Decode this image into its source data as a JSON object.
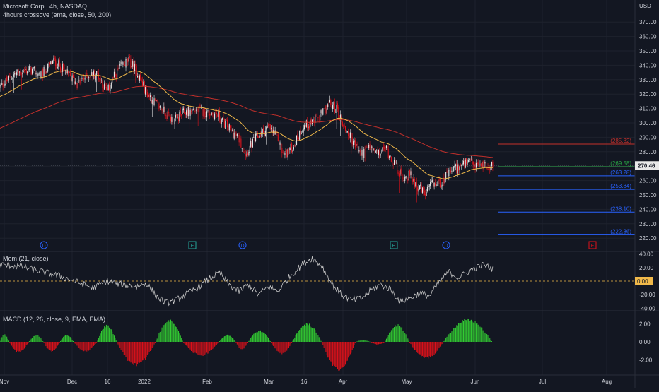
{
  "symbol": {
    "title": "Microsoft Corp., 4h, NASDAQ",
    "study": "4hours crossove (ema, close, 50, 200)"
  },
  "currency": "USD",
  "colors": {
    "background": "#131722",
    "grid": "#1e222d",
    "candle_up": "#e6e6e6",
    "candle_down": "#e0111a",
    "ema50": "#f0b94a",
    "ema200": "#c4302b",
    "price_label_bg": "#e8e8e8",
    "level_green": "#29a745",
    "level_blue": "#2962ff",
    "level_red": "#c4302b",
    "mom_line": "#c8c8c8",
    "mom_zero": "#f0b94a",
    "macd_pos": "#32cd32",
    "macd_neg": "#e0111a",
    "event_dividend": "#2962ff",
    "event_earnings": "#26a69a",
    "event_earnings_future": "#e0111a"
  },
  "price_axis": {
    "ticks": [
      "370.00",
      "360.00",
      "350.00",
      "340.00",
      "330.00",
      "320.00",
      "310.00",
      "300.00",
      "290.00",
      "280.00",
      "270.00",
      "260.00",
      "250.00",
      "240.00",
      "230.00",
      "220.00"
    ],
    "tick_values": [
      370,
      360,
      350,
      340,
      330,
      320,
      310,
      300,
      290,
      280,
      270,
      260,
      250,
      240,
      230,
      220
    ],
    "last_price": "270.46",
    "last_price_value": 270.46
  },
  "levels": [
    {
      "label": "(285.32)",
      "value": 285.32,
      "color": "#c4302b"
    },
    {
      "label": "(269.58)",
      "value": 269.58,
      "color": "#29a745"
    },
    {
      "label": "(263.28)",
      "value": 263.28,
      "color": "#2962ff"
    },
    {
      "label": "(253.84)",
      "value": 253.84,
      "color": "#2962ff"
    },
    {
      "label": "(238.10)",
      "value": 238.1,
      "color": "#2962ff"
    },
    {
      "label": "(222.36)",
      "value": 222.36,
      "color": "#2962ff"
    }
  ],
  "events": [
    {
      "letter": "D",
      "type": "dividend"
    },
    {
      "letter": "E",
      "type": "earnings"
    },
    {
      "letter": "D",
      "type": "dividend"
    },
    {
      "letter": "E",
      "type": "earnings"
    },
    {
      "letter": "D",
      "type": "dividend"
    },
    {
      "letter": "E",
      "type": "earnings_future"
    }
  ],
  "time_axis": [
    "Nov",
    "Dec",
    "16",
    "2022",
    "Feb",
    "Mar",
    "16",
    "Apr",
    "May",
    "Jun",
    "Jul",
    "Aug"
  ],
  "mom": {
    "label": "Mom (21, close)",
    "ticks": [
      "40.00",
      "20.00",
      "-20.00",
      "-40.00"
    ],
    "tick_values": [
      40,
      20,
      -20,
      -40
    ],
    "last_value": "0.00",
    "anchors": [
      [
        0,
        24
      ],
      [
        20,
        22
      ],
      [
        40,
        15
      ],
      [
        60,
        8
      ],
      [
        80,
        -2
      ],
      [
        95,
        -10
      ],
      [
        110,
        0
      ],
      [
        125,
        -5
      ],
      [
        140,
        -8
      ],
      [
        150,
        -3
      ],
      [
        160,
        -22
      ],
      [
        170,
        -32
      ],
      [
        180,
        -28
      ],
      [
        190,
        -20
      ],
      [
        200,
        -12
      ],
      [
        215,
        4
      ],
      [
        225,
        12
      ],
      [
        235,
        -6
      ],
      [
        245,
        -15
      ],
      [
        255,
        -5
      ],
      [
        265,
        -20
      ],
      [
        275,
        -8
      ],
      [
        285,
        -15
      ],
      [
        295,
        4
      ],
      [
        310,
        25
      ],
      [
        320,
        34
      ],
      [
        330,
        22
      ],
      [
        340,
        -4
      ],
      [
        350,
        -20
      ],
      [
        360,
        -28
      ],
      [
        370,
        -26
      ],
      [
        380,
        -14
      ],
      [
        390,
        -5
      ],
      [
        400,
        -12
      ],
      [
        410,
        -30
      ],
      [
        420,
        -25
      ],
      [
        430,
        -18
      ],
      [
        440,
        -22
      ],
      [
        450,
        -2
      ],
      [
        460,
        14
      ],
      [
        470,
        5
      ],
      [
        482,
        16
      ],
      [
        495,
        24
      ],
      [
        505,
        18
      ]
    ]
  },
  "macd": {
    "label": "MACD (12, 26, close, 9, EMA, EMA)",
    "ticks": [
      "2.00",
      "0.00",
      "-2.00"
    ],
    "tick_values": [
      2,
      0,
      -2
    ],
    "segments": [
      {
        "from": 0,
        "to": 10,
        "peak": 0.85
      },
      {
        "from": 10,
        "to": 30,
        "peak": -1.2
      },
      {
        "from": 30,
        "to": 45,
        "peak": 0.8
      },
      {
        "from": 45,
        "to": 62,
        "peak": -1.1
      },
      {
        "from": 62,
        "to": 76,
        "peak": 0.8
      },
      {
        "from": 76,
        "to": 100,
        "peak": -1.1
      },
      {
        "from": 100,
        "to": 120,
        "peak": 1.9
      },
      {
        "from": 120,
        "to": 160,
        "peak": -2.7
      },
      {
        "from": 160,
        "to": 188,
        "peak": 2.5
      },
      {
        "from": 188,
        "to": 225,
        "peak": -1.6
      },
      {
        "from": 225,
        "to": 242,
        "peak": 0.8
      },
      {
        "from": 242,
        "to": 255,
        "peak": -0.9
      },
      {
        "from": 255,
        "to": 278,
        "peak": 1.3
      },
      {
        "from": 278,
        "to": 300,
        "peak": -1.4
      },
      {
        "from": 300,
        "to": 330,
        "peak": 2.1
      },
      {
        "from": 330,
        "to": 365,
        "peak": -3.2
      },
      {
        "from": 365,
        "to": 380,
        "peak": 0.2
      },
      {
        "from": 380,
        "to": 395,
        "peak": -0.3
      },
      {
        "from": 395,
        "to": 420,
        "peak": 2.0
      },
      {
        "from": 420,
        "to": 455,
        "peak": -1.9
      },
      {
        "from": 455,
        "to": 505,
        "peak": 2.6
      }
    ]
  },
  "price_path": {
    "total_bars": 506,
    "anchors": [
      [
        0,
        325
      ],
      [
        15,
        334
      ],
      [
        30,
        337
      ],
      [
        42,
        333
      ],
      [
        55,
        343
      ],
      [
        62,
        339
      ],
      [
        70,
        333
      ],
      [
        80,
        327
      ],
      [
        90,
        333
      ],
      [
        100,
        334
      ],
      [
        110,
        321
      ],
      [
        115,
        330
      ],
      [
        125,
        340
      ],
      [
        132,
        343
      ],
      [
        140,
        336
      ],
      [
        150,
        321
      ],
      [
        160,
        313
      ],
      [
        170,
        307
      ],
      [
        178,
        301
      ],
      [
        188,
        307
      ],
      [
        200,
        309
      ],
      [
        212,
        307
      ],
      [
        222,
        306
      ],
      [
        235,
        296
      ],
      [
        245,
        289
      ],
      [
        252,
        279
      ],
      [
        262,
        289
      ],
      [
        275,
        297
      ],
      [
        285,
        289
      ],
      [
        290,
        278
      ],
      [
        300,
        283
      ],
      [
        310,
        297
      ],
      [
        320,
        301
      ],
      [
        330,
        306
      ],
      [
        337,
        313
      ],
      [
        345,
        310
      ],
      [
        352,
        298
      ],
      [
        362,
        287
      ],
      [
        370,
        278
      ],
      [
        378,
        283
      ],
      [
        388,
        278
      ],
      [
        395,
        283
      ],
      [
        405,
        271
      ],
      [
        412,
        262
      ],
      [
        420,
        264
      ],
      [
        428,
        256
      ],
      [
        436,
        250
      ],
      [
        442,
        257
      ],
      [
        450,
        258
      ],
      [
        458,
        263
      ],
      [
        465,
        268
      ],
      [
        472,
        270
      ],
      [
        480,
        272
      ],
      [
        488,
        270
      ],
      [
        495,
        271
      ],
      [
        505,
        270
      ]
    ]
  }
}
